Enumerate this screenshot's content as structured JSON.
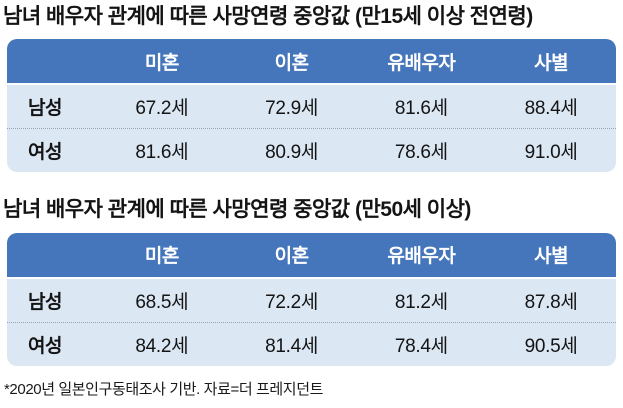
{
  "page": {
    "footnote": "*2020년 일본인구동태조사 기반. 자료=더 프레지던트"
  },
  "colors": {
    "header_bg": "#4575bb",
    "header_text": "#ffffff",
    "row_bg": "#dbe7f3",
    "title_text": "#141414",
    "divider": "#93a6ba"
  },
  "tables": [
    {
      "title": "남녀 배우자 관계에 따른 사망연령 중앙값 (만15세 이상 전연령)",
      "headers": [
        "미혼",
        "이혼",
        "유배우자",
        "사별"
      ],
      "rows": [
        {
          "label": "남성",
          "values": [
            "67.2세",
            "72.9세",
            "81.6세",
            "88.4세"
          ]
        },
        {
          "label": "여성",
          "values": [
            "81.6세",
            "80.9세",
            "78.6세",
            "91.0세"
          ]
        }
      ]
    },
    {
      "title": "남녀 배우자 관계에 따른 사망연령 중앙값 (만50세 이상)",
      "headers": [
        "미혼",
        "이혼",
        "유배우자",
        "사별"
      ],
      "rows": [
        {
          "label": "남성",
          "values": [
            "68.5세",
            "72.2세",
            "81.2세",
            "87.8세"
          ]
        },
        {
          "label": "여성",
          "values": [
            "84.2세",
            "81.4세",
            "78.4세",
            "90.5세"
          ]
        }
      ]
    }
  ],
  "chart_data": [
    {
      "type": "table",
      "title": "남녀 배우자 관계에 따른 사망연령 중앙값 (만15세 이상 전연령)",
      "categories": [
        "미혼",
        "이혼",
        "유배우자",
        "사별"
      ],
      "series": [
        {
          "name": "남성",
          "values": [
            67.2,
            72.9,
            81.6,
            88.4
          ]
        },
        {
          "name": "여성",
          "values": [
            81.6,
            80.9,
            78.6,
            91.0
          ]
        }
      ],
      "unit": "세",
      "source": "*2020년 일본인구동태조사 기반. 자료=더 프레지던트"
    },
    {
      "type": "table",
      "title": "남녀 배우자 관계에 따른 사망연령 중앙값 (만50세 이상)",
      "categories": [
        "미혼",
        "이혼",
        "유배우자",
        "사별"
      ],
      "series": [
        {
          "name": "남성",
          "values": [
            68.5,
            72.2,
            81.2,
            87.8
          ]
        },
        {
          "name": "여성",
          "values": [
            84.2,
            81.4,
            78.4,
            90.5
          ]
        }
      ],
      "unit": "세",
      "source": "*2020년 일본인구동태조사 기반. 자료=더 프레지던트"
    }
  ]
}
